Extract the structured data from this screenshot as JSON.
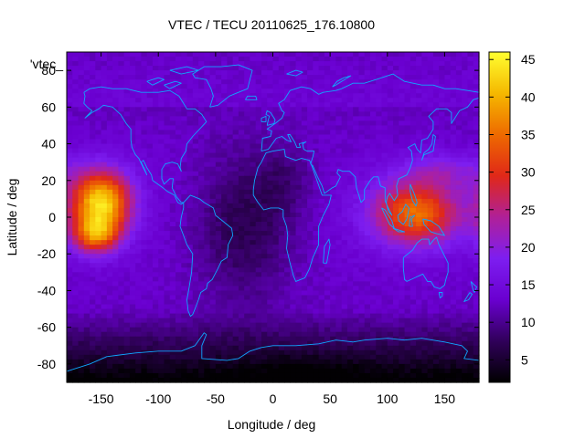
{
  "chart_data": {
    "type": "heatmap",
    "title": "VTEC / TECU 20110625_176.10800",
    "xlabel": "Longitude / deg",
    "ylabel": "Latitude / deg",
    "legend_key": "'vtec_",
    "x_ticks": [
      "-150",
      "-100",
      "-50",
      "0",
      "50",
      "100",
      "150"
    ],
    "x_tick_values": [
      -150,
      -100,
      -50,
      0,
      50,
      100,
      150
    ],
    "y_ticks": [
      "-80",
      "-60",
      "-40",
      "-20",
      "0",
      "20",
      "40",
      "60",
      "80"
    ],
    "y_tick_values": [
      -80,
      -60,
      -40,
      -20,
      0,
      20,
      40,
      60,
      80
    ],
    "xlim": [
      -180,
      180
    ],
    "ylim": [
      -90,
      90
    ],
    "colorbar_ticks": [
      "5",
      "10",
      "15",
      "20",
      "25",
      "30",
      "35",
      "40",
      "45"
    ],
    "colorbar_tick_values": [
      5,
      10,
      15,
      20,
      25,
      30,
      35,
      40,
      45
    ],
    "colorbar_range": [
      2,
      46
    ],
    "grid_resolution_deg": {
      "lon": 5,
      "lat": 2.5
    },
    "features": [
      {
        "name": "equatorial anomaly west",
        "lon": -150,
        "lat": 8,
        "value": 43
      },
      {
        "name": "equatorial anomaly east",
        "lon": 125,
        "lat": 2,
        "value": 35
      },
      {
        "name": "southern high-latitude minimum",
        "lon": 0,
        "lat": -80,
        "value": 3
      },
      {
        "name": "mid-Atlantic trough",
        "lon": -20,
        "lat": 0,
        "value": 5
      }
    ],
    "map_overlay": "coastlines",
    "palette": [
      "#000000",
      "#30005a",
      "#6a00d0",
      "#7d1ef0",
      "#b02098",
      "#e02818",
      "#ee6a00",
      "#f5b800",
      "#ffff30"
    ]
  }
}
